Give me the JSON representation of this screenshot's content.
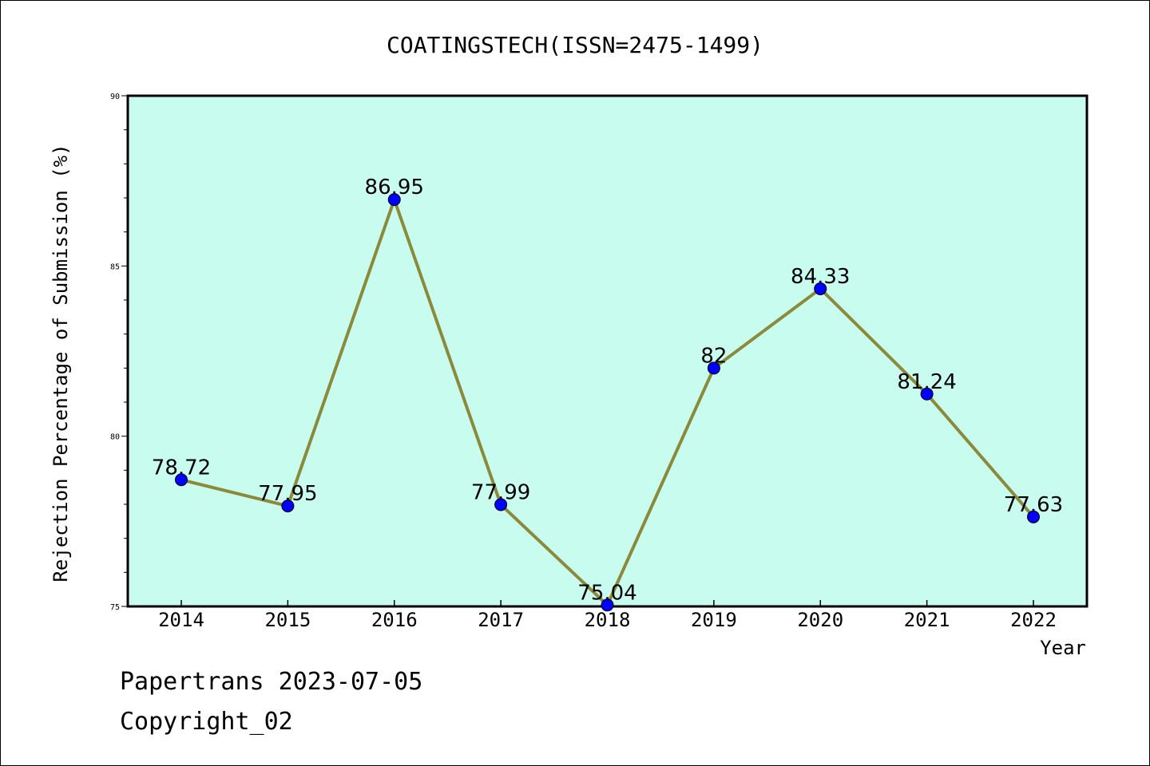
{
  "chart_data": {
    "type": "line",
    "title": "COATINGSTECH(ISSN=2475-1499)",
    "xlabel": "Year",
    "ylabel": "Rejection Percentage of Submission (%)",
    "x": [
      "2014",
      "2015",
      "2016",
      "2017",
      "2018",
      "2019",
      "2020",
      "2021",
      "2022"
    ],
    "values": [
      78.72,
      77.95,
      86.95,
      77.99,
      75.04,
      82,
      84.33,
      81.24,
      77.63
    ],
    "data_labels": [
      "78.72",
      "77.95",
      "86.95",
      "77.99",
      "75.04",
      "82",
      "84.33",
      "81.24",
      "77.63"
    ],
    "ylim": [
      75,
      90
    ],
    "y_ticks": [
      75,
      80,
      85,
      90
    ],
    "y_tick_labels": [
      "75",
      "80",
      "85",
      "90"
    ],
    "grid": false,
    "colors": {
      "plot_background": "#c8fcee",
      "line": "#8b8a3a",
      "marker": "#0000ff"
    }
  },
  "footer": {
    "source": "Papertrans 2023-07-05",
    "copyright": "Copyright_02"
  }
}
